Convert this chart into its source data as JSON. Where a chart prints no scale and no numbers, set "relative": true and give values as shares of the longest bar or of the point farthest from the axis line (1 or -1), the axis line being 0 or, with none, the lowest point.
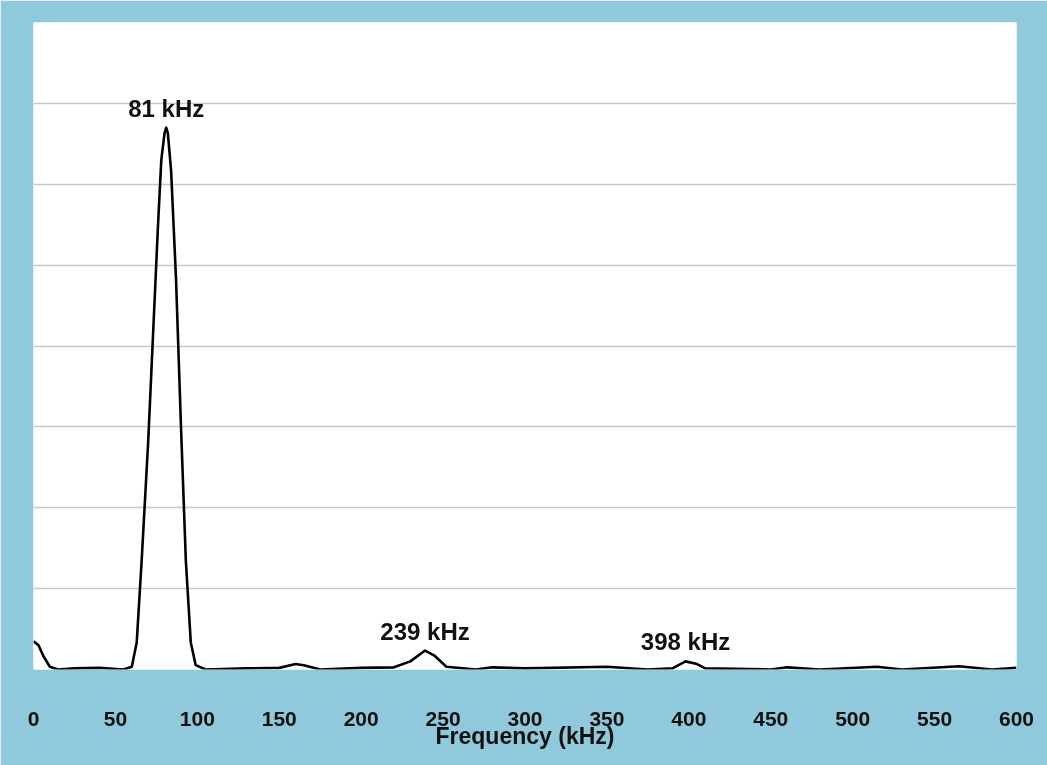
{
  "chart_data": {
    "type": "line",
    "relative": true,
    "xlabel": "Frequency (kHz)",
    "xlim": [
      0,
      600
    ],
    "xticks": [
      0,
      50,
      100,
      150,
      200,
      250,
      300,
      350,
      400,
      450,
      500,
      550,
      600
    ],
    "grid": "y",
    "marker": "none",
    "line_style": "solid",
    "annotations": [
      {
        "text": "81 kHz",
        "x": 81,
        "y": 1.0
      },
      {
        "text": "239 kHz",
        "x": 239,
        "y": 0.035
      },
      {
        "text": "398 kHz",
        "x": 398,
        "y": 0.015
      }
    ],
    "series": [
      {
        "color": "#000000",
        "x": [
          0,
          3,
          6,
          10,
          15,
          25,
          40,
          55,
          60,
          63,
          66,
          70,
          73,
          76,
          78,
          80,
          81,
          82,
          84,
          87,
          90,
          93,
          96,
          99,
          105,
          130,
          150,
          160,
          165,
          175,
          200,
          220,
          230,
          239,
          245,
          252,
          270,
          280,
          300,
          350,
          375,
          390,
          398,
          405,
          410,
          450,
          460,
          480,
          515,
          530,
          565,
          585,
          600
        ],
        "values": [
          0.052,
          0.045,
          0.025,
          0.005,
          0.0,
          0.002,
          0.003,
          0.0,
          0.005,
          0.05,
          0.2,
          0.42,
          0.62,
          0.82,
          0.94,
          0.99,
          1.0,
          0.99,
          0.92,
          0.72,
          0.45,
          0.2,
          0.05,
          0.008,
          0.0,
          0.002,
          0.003,
          0.01,
          0.008,
          0.0,
          0.003,
          0.004,
          0.015,
          0.035,
          0.025,
          0.005,
          0.0,
          0.004,
          0.002,
          0.005,
          0.0,
          0.002,
          0.015,
          0.01,
          0.002,
          0.0,
          0.004,
          0.0,
          0.005,
          0.0,
          0.006,
          0.0,
          0.003
        ]
      }
    ]
  }
}
